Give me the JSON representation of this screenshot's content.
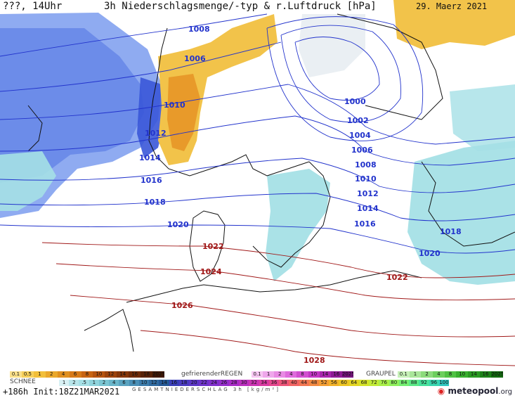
{
  "header": {
    "left_label": "???, 14Uhr",
    "title": "3h Niederschlagsmenge/-typ & r.Luftdruck [hPa]",
    "date": "29. Maerz 2021"
  },
  "isobars": [
    {
      "value": "1008",
      "color": "#2233cc"
    },
    {
      "value": "1010",
      "color": "#2233cc"
    },
    {
      "value": "1012",
      "color": "#2233cc"
    },
    {
      "value": "1014",
      "color": "#2233cc"
    },
    {
      "value": "1016",
      "color": "#2233cc"
    },
    {
      "value": "1018",
      "color": "#2233cc"
    },
    {
      "value": "1020",
      "color": "#2233cc"
    },
    {
      "value": "1022",
      "color": "#a01818"
    },
    {
      "value": "1024",
      "color": "#a01818"
    },
    {
      "value": "1026",
      "color": "#a01818"
    },
    {
      "value": "1028",
      "color": "#a01818"
    }
  ],
  "pressure_labels": [
    {
      "text": "1008",
      "color": "#2233cc"
    },
    {
      "text": "1010",
      "color": "#2233cc"
    },
    {
      "text": "1012",
      "color": "#2233cc"
    },
    {
      "text": "1014",
      "color": "#2233cc"
    },
    {
      "text": "1016",
      "color": "#2233cc"
    },
    {
      "text": "1018",
      "color": "#2233cc"
    },
    {
      "text": "1020",
      "color": "#2233cc"
    },
    {
      "text": "1000",
      "color": "#2233cc"
    },
    {
      "text": "1002",
      "color": "#2233cc"
    },
    {
      "text": "1004",
      "color": "#2233cc"
    },
    {
      "text": "1006",
      "color": "#2233cc"
    },
    {
      "text": "1008",
      "color": "#2233cc"
    },
    {
      "text": "1010",
      "color": "#2233cc"
    },
    {
      "text": "1012",
      "color": "#2233cc"
    },
    {
      "text": "1014",
      "color": "#2233cc"
    },
    {
      "text": "1016",
      "color": "#2233cc"
    },
    {
      "text": "1018",
      "color": "#2233cc"
    },
    {
      "text": "1020",
      "color": "#2233cc"
    },
    {
      "text": "1022",
      "color": "#a01818"
    },
    {
      "text": "1024",
      "color": "#a01818"
    },
    {
      "text": "1026",
      "color": "#a01818"
    },
    {
      "text": "1022",
      "color": "#a01818"
    },
    {
      "text": "1028",
      "color": "#a01818"
    },
    {
      "text": "1006",
      "color": "#2233cc"
    }
  ],
  "legend": {
    "rain_label": "",
    "schnee_label": "SCHNEE",
    "freezing_label": "gefrierenderREGEN",
    "graupel_label": "GRAUPEL",
    "sum_label": "GESAMTNIEDERSCHLAG 3h [kg/m²]",
    "rain_values": [
      "0.1",
      "0.5",
      "1",
      "2",
      "4",
      "6",
      "8",
      "10",
      "12",
      "14",
      "16",
      "18",
      "2025+"
    ],
    "snow_values": [
      "1",
      "2",
      ".5",
      "1",
      "2",
      "4",
      "6",
      "8",
      "10",
      "12",
      "14"
    ],
    "freezing_values": [
      "0.1",
      "1",
      "2",
      "4",
      "8",
      "10",
      "14",
      "16",
      "2025+"
    ],
    "graupel_values": [
      "0.1",
      "1",
      "2",
      "4",
      "8",
      "10",
      "14",
      "16",
      "2025+"
    ],
    "total_values": [
      "16",
      "18",
      "20",
      "22",
      "24",
      "26",
      "28",
      "30",
      "32",
      "34",
      "36",
      "38",
      "40",
      "44",
      "48",
      "52",
      "56",
      "60",
      "64",
      "68",
      "72",
      "76",
      "80",
      "84",
      "88",
      "92",
      "96",
      "100"
    ]
  },
  "footer": {
    "init_text": "+186h  Init:18Z21MAR2021",
    "logo_text": "meteopool",
    "logo_suffix": ".org"
  },
  "colors": {
    "rain_blue": "#6f8fe6",
    "rain_deep": "#3a56d8",
    "snow_cyan": "#a5e0e6",
    "yellow": "#f2c34a",
    "orange": "#e89a2a",
    "isobar_blue": "#2233cc",
    "isobar_red": "#a01818"
  }
}
